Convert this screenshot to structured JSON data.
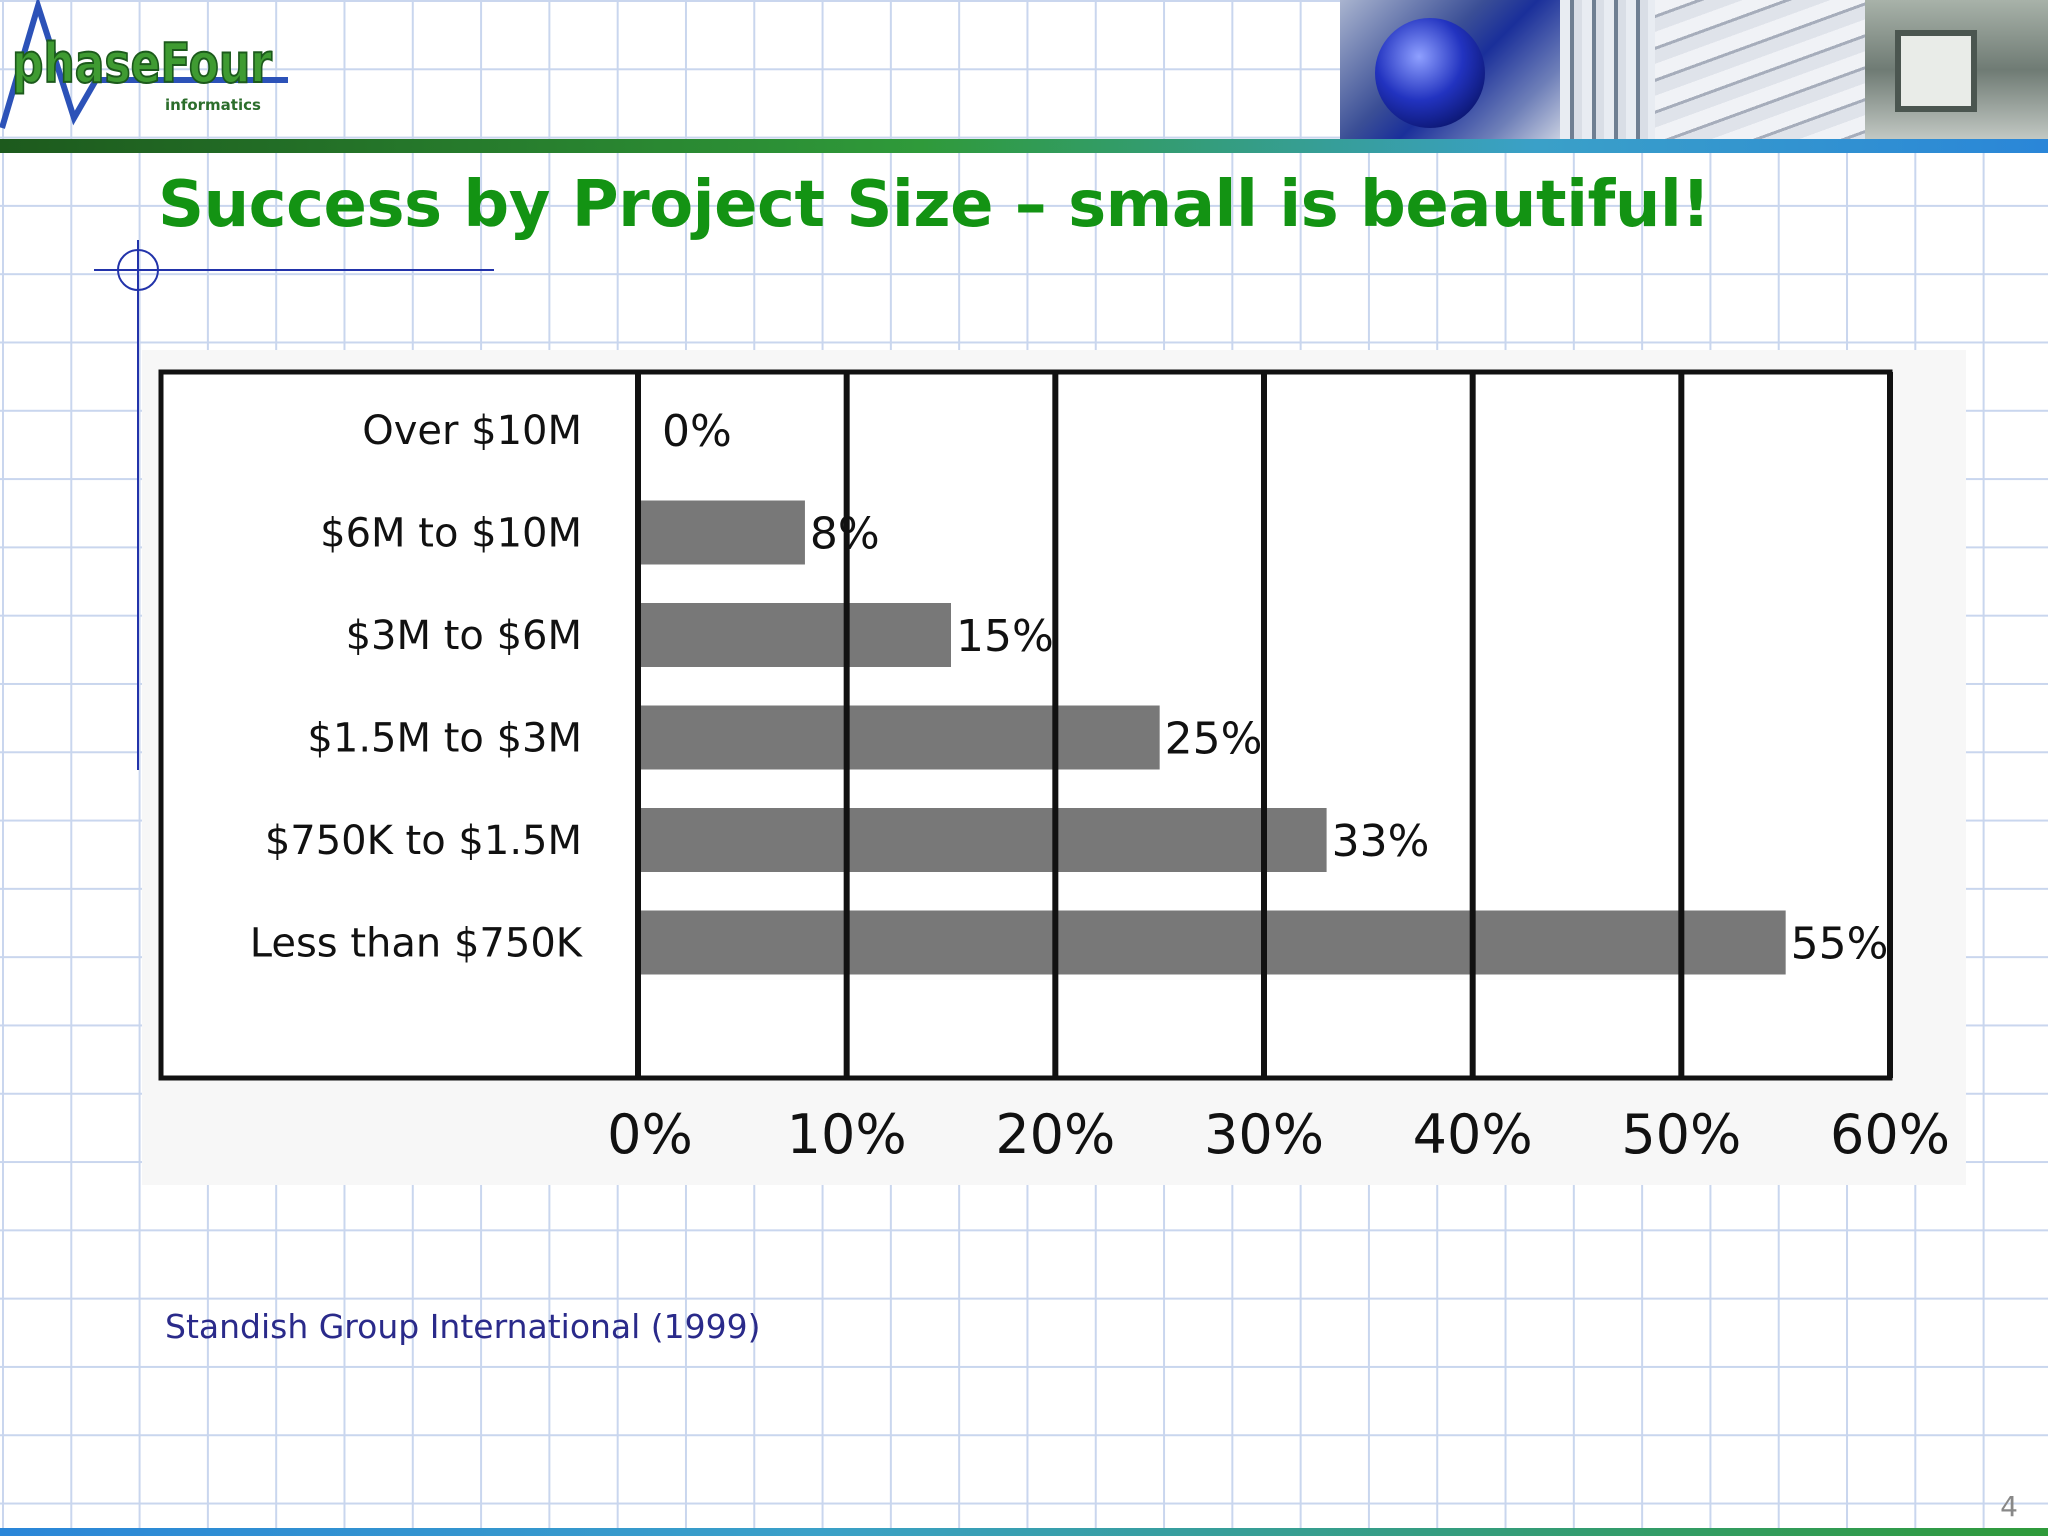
{
  "logo": {
    "text": "phaseFour",
    "subtext": "informatics"
  },
  "title": "Success by Project Size – small is beautiful!",
  "source_note": "Standish Group International (1999)",
  "slide_number": "4",
  "chart_data": {
    "type": "bar",
    "orientation": "horizontal",
    "title": "",
    "xlabel": "",
    "ylabel": "",
    "categories": [
      "Over $10M",
      "$6M to $10M",
      "$3M to $6M",
      "$1.5M to $3M",
      "$750K to $1.5M",
      "Less than $750K"
    ],
    "values": [
      0,
      8,
      15,
      25,
      33,
      55
    ],
    "value_labels": [
      "0%",
      "8%",
      "15%",
      "25%",
      "33%",
      "55%"
    ],
    "xlim": [
      0,
      60
    ],
    "xticks": [
      0,
      10,
      20,
      30,
      40,
      50,
      60
    ],
    "xtick_labels": [
      "0%",
      "10%",
      "20%",
      "30%",
      "40%",
      "50%",
      "60%"
    ],
    "grid": "vertical",
    "legend": "none",
    "bar_color": "#787878"
  }
}
